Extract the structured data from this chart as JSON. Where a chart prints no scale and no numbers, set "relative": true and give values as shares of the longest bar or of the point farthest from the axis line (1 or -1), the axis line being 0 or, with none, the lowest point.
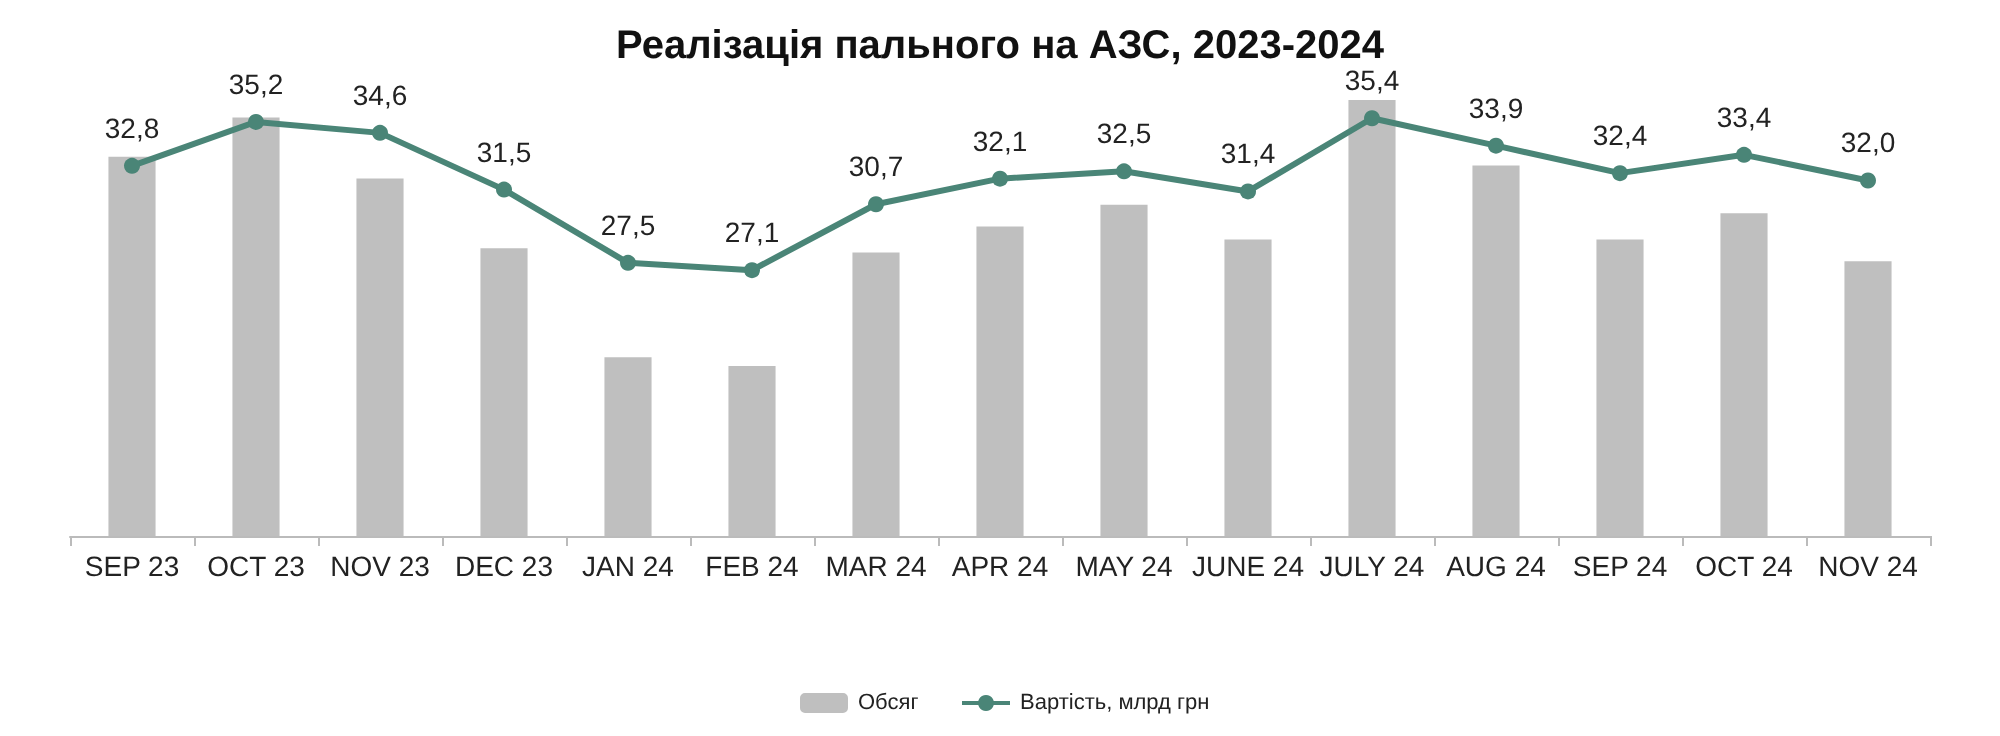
{
  "chart_data": [
    {
      "type": "bar",
      "title": "Реалізація пального на АЗС, 2023-2024",
      "categories": [
        "SEP 23",
        "OCT 23",
        "NOV 23",
        "DEC 23",
        "JAN 24",
        "FEB 24",
        "MAR 24",
        "APR 24",
        "MAY 24",
        "JUNE 24",
        "JULY 24",
        "AUG 24",
        "SEP 24",
        "OCT 24",
        "NOV 24"
      ],
      "relative": true,
      "legend": "bottom",
      "tick_labels": "x",
      "series": [
        {
          "name": "Обсяг",
          "color": "#bfbfbf",
          "values": [
            0.87,
            0.96,
            0.82,
            0.66,
            0.41,
            0.39,
            0.65,
            0.71,
            0.76,
            0.68,
            1,
            0.85,
            0.68,
            0.74,
            0.63
          ]
        }
      ]
    },
    {
      "type": "line",
      "categories": [
        "SEP 23",
        "OCT 23",
        "NOV 23",
        "DEC 23",
        "JAN 24",
        "FEB 24",
        "MAR 24",
        "APR 24",
        "MAY 24",
        "JUNE 24",
        "JULY 24",
        "AUG 24",
        "SEP 24",
        "OCT 24",
        "NOV 24"
      ],
      "legend": "bottom",
      "tick_labels": false,
      "marker": "circle",
      "series": [
        {
          "name": "Вартість, млрд грн",
          "color": "#4a8577",
          "values": [
            32.8,
            35.2,
            34.6,
            31.5,
            27.5,
            27.1,
            30.7,
            32.1,
            32.5,
            31.4,
            35.4,
            33.9,
            32.4,
            33.4,
            32.0
          ],
          "value_labels": [
            "32,8",
            "35,2",
            "34,6",
            "31,5",
            "27,5",
            "27,1",
            "30,7",
            "32,1",
            "32,5",
            "31,4",
            "35,4",
            "33,9",
            "32,4",
            "33,4",
            "32,0"
          ]
        }
      ]
    }
  ]
}
